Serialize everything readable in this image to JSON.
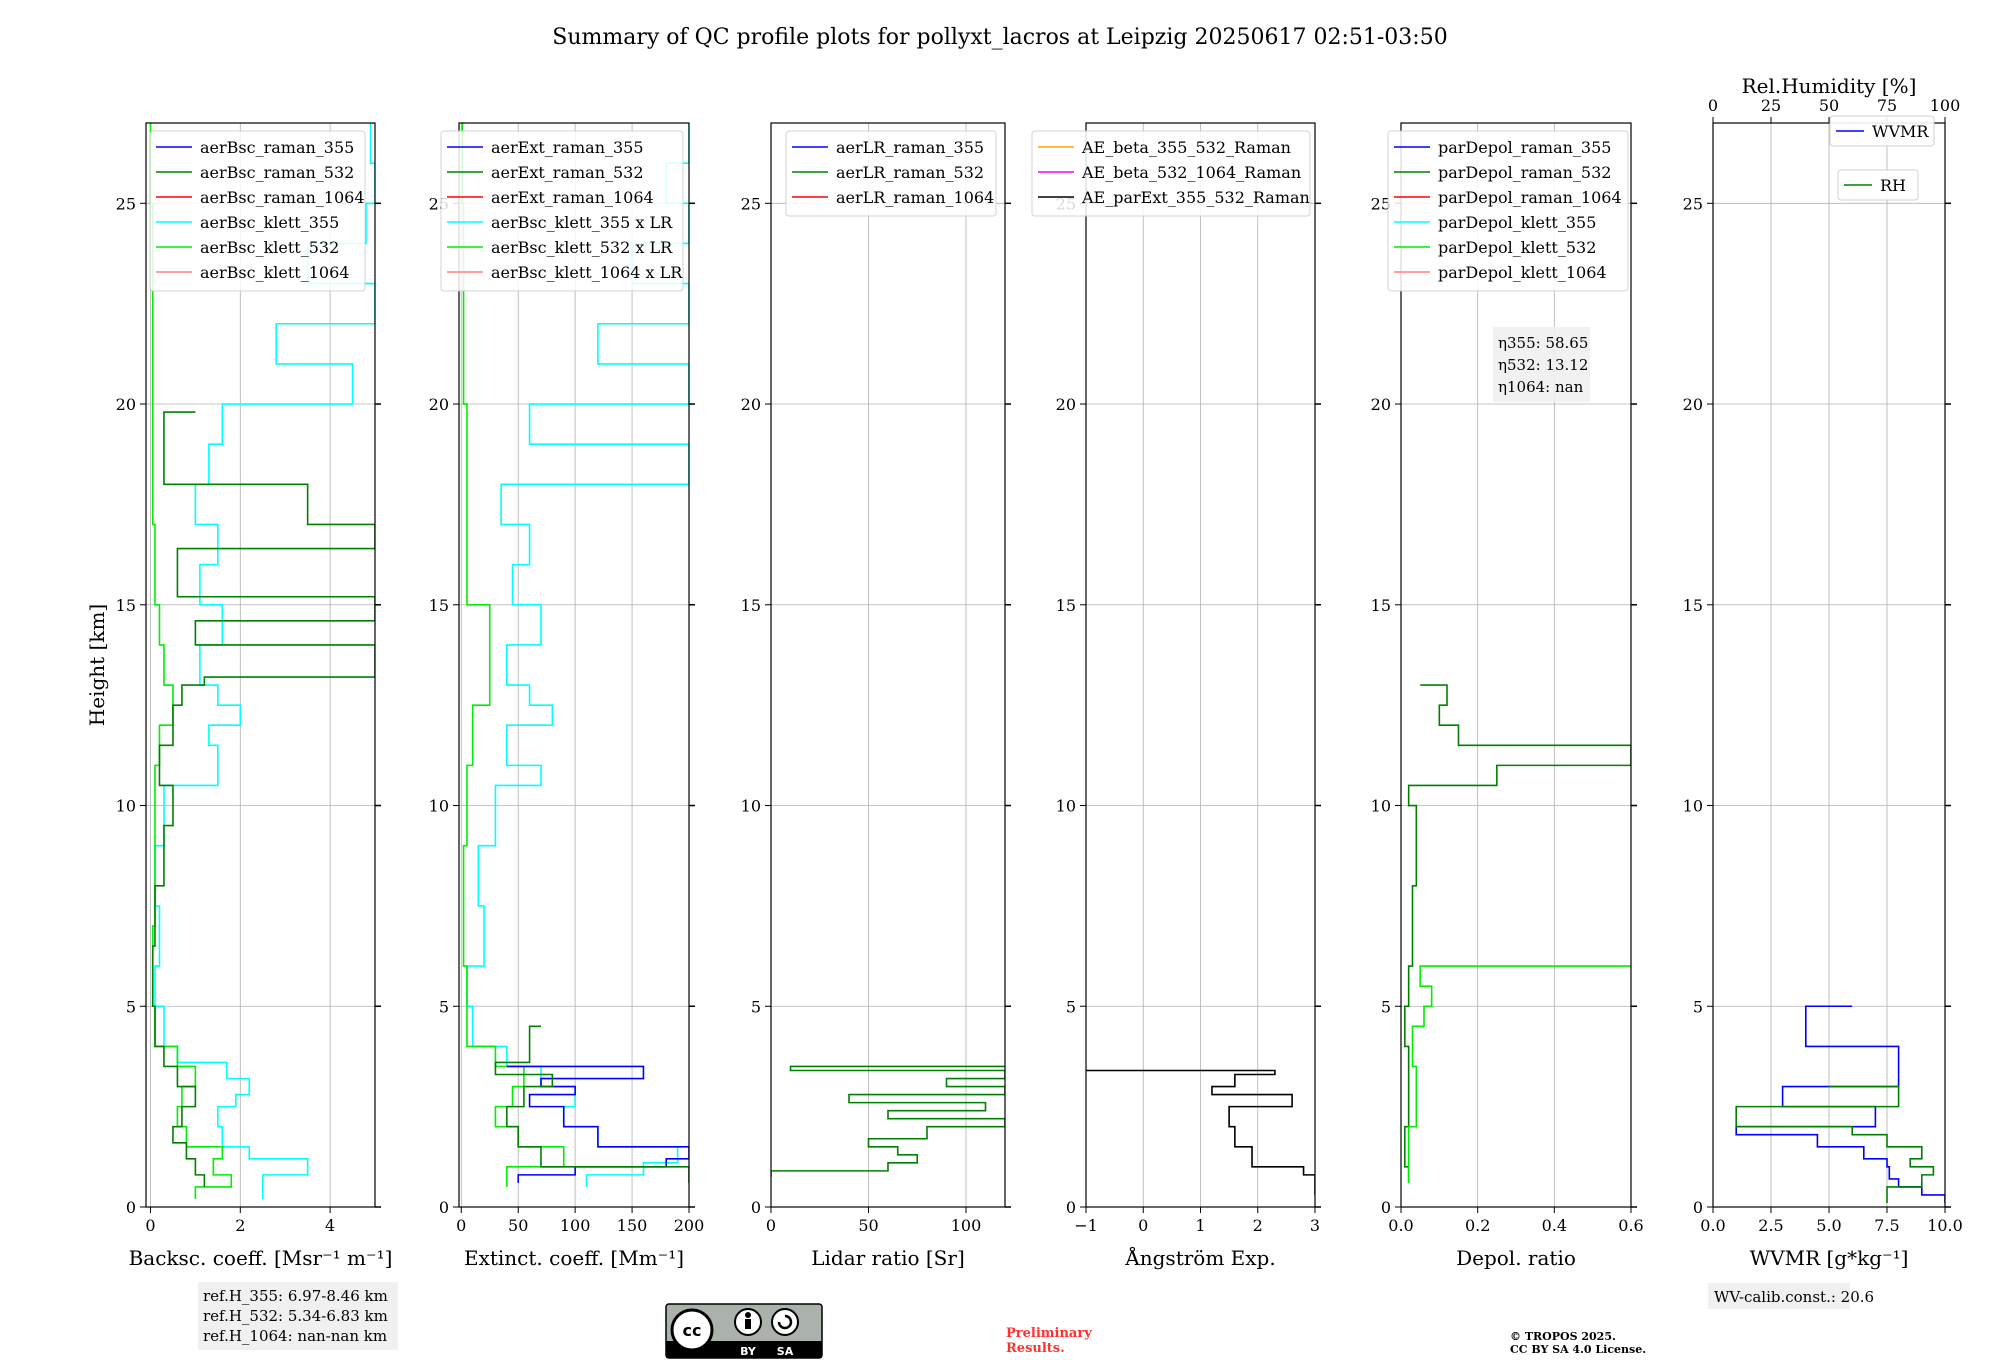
{
  "title": "Summary of QC profile plots for pollyxt_lacros at Leipzig 20250617 02:51-03:50",
  "footer": {
    "refh": [
      "ref.H_355: 6.97-8.46 km",
      "ref.H_532: 5.34-6.83 km",
      "ref.H_1064: nan-nan km"
    ],
    "license_badge": [
      "cc",
      "BY",
      "SA"
    ],
    "preliminary": [
      "Preliminary",
      "Results."
    ],
    "copyright": [
      "© TROPOS 2025.",
      "CC BY SA 4.0 License."
    ],
    "wv_calib": "WV-calib.const.: 20.6"
  },
  "eta_box": [
    "η355: 58.65",
    "η532: 13.12",
    "η1064: nan"
  ],
  "colors": {
    "blue": "#0000ff",
    "green": "#008000",
    "red": "#ff0000",
    "cyan": "#00ffff",
    "lime": "#00ee00",
    "pink": "#ff8080",
    "orange": "#ffa500",
    "magenta": "#ff00ff",
    "black": "#000000",
    "preliminary": "#ff3030"
  },
  "chart_data": [
    {
      "type": "line",
      "id": "bsc",
      "xlabel": "Backsc. coeff. [Msr⁻¹ m⁻¹]",
      "ylabel": "Height [km]",
      "xlim": [
        -0.1,
        5
      ],
      "ylim": [
        0,
        27
      ],
      "xticks": [
        "0",
        "2",
        "4"
      ],
      "xtick_values": [
        0,
        2,
        4
      ],
      "yticks": [
        "0",
        "5",
        "10",
        "15",
        "20",
        "25"
      ],
      "legend": [
        "aerBsc_raman_355",
        "aerBsc_raman_532",
        "aerBsc_raman_1064",
        "aerBsc_klett_355",
        "aerBsc_klett_532",
        "aerBsc_klett_1064"
      ],
      "legend_colors": [
        "blue",
        "green",
        "red",
        "cyan",
        "lime",
        "pink"
      ],
      "series": [
        {
          "name": "aerBsc_klett_355",
          "color": "cyan",
          "h": [
            0.2,
            0.8,
            1.2,
            1.5,
            2.0,
            2.5,
            2.8,
            3.2,
            3.6,
            4.0,
            5.0,
            6.0,
            7.5,
            9.0,
            10.5,
            11.5,
            12.0,
            12.5,
            13.0,
            14.0,
            15.0,
            16.0,
            17.0,
            18.0,
            19.0,
            20.0,
            21.0,
            22.0,
            23.0,
            24.0,
            25.0,
            26.0,
            27.0
          ],
          "v": [
            2.5,
            3.5,
            2.2,
            1.6,
            1.5,
            1.9,
            2.2,
            1.7,
            0.6,
            0.3,
            0.1,
            0.2,
            0.1,
            0.3,
            1.5,
            1.3,
            2.0,
            1.5,
            1.1,
            1.6,
            1.1,
            1.5,
            1.0,
            1.3,
            1.6,
            4.5,
            2.8,
            5.0,
            3.5,
            4.8,
            5.0,
            4.9,
            5.0
          ]
        },
        {
          "name": "aerBsc_klett_532",
          "color": "lime",
          "h": [
            0.2,
            0.5,
            0.8,
            1.2,
            1.5,
            2.0,
            2.5,
            3.0,
            3.5,
            4.0,
            5.0,
            7.0,
            9.0,
            11.0,
            12.0,
            13.0,
            14.0,
            15.0,
            17.0,
            19.0,
            21.0,
            23.0,
            25.0,
            27.0
          ],
          "v": [
            1.0,
            1.8,
            1.4,
            1.6,
            0.8,
            0.6,
            0.7,
            1.0,
            0.6,
            0.1,
            0.05,
            0.1,
            0.1,
            0.2,
            0.5,
            0.3,
            0.2,
            0.1,
            0.05,
            0.05,
            0.05,
            0.05,
            0.0,
            0.05
          ]
        },
        {
          "name": "aerBsc_raman_532",
          "color": "green",
          "h": [
            0.5,
            0.8,
            1.2,
            1.6,
            2.0,
            2.5,
            3.0,
            3.5,
            4.0,
            5.0,
            6.5,
            8.0,
            9.5,
            10.5,
            11.5,
            12.5,
            13.0,
            13.2,
            14.0,
            14.6,
            15.2,
            16.4,
            17.0,
            18.0,
            19.8
          ],
          "v": [
            1.2,
            1.0,
            0.8,
            0.5,
            0.7,
            1.0,
            0.6,
            0.3,
            0.1,
            0.05,
            0.1,
            0.3,
            0.5,
            0.2,
            0.5,
            0.7,
            1.2,
            5.0,
            1.0,
            5.0,
            0.6,
            5.0,
            3.5,
            0.3,
            1.0
          ]
        }
      ]
    },
    {
      "type": "line",
      "id": "ext",
      "xlabel": "Extinct. coeff. [Mm⁻¹]",
      "xlim": [
        -2,
        200
      ],
      "ylim": [
        0,
        27
      ],
      "xticks": [
        "0",
        "50",
        "100",
        "150",
        "200"
      ],
      "xtick_values": [
        0,
        50,
        100,
        150,
        200
      ],
      "yticks": [
        "0",
        "5",
        "10",
        "15",
        "20",
        "25"
      ],
      "legend": [
        "aerExt_raman_355",
        "aerExt_raman_532",
        "aerExt_raman_1064",
        "aerBsc_klett_355 x LR",
        "aerBsc_klett_532 x LR",
        "aerBsc_klett_1064 x LR"
      ],
      "legend_colors": [
        "blue",
        "green",
        "red",
        "cyan",
        "lime",
        "pink"
      ],
      "series": [
        {
          "name": "aerBsc_klett_355 x LR",
          "color": "cyan",
          "h": [
            0.5,
            0.8,
            1.1,
            1.5,
            2.0,
            2.5,
            3.0,
            3.5,
            4.0,
            5.0,
            6.0,
            7.5,
            9.0,
            10.5,
            11.0,
            12.0,
            12.5,
            13.0,
            14.0,
            15.0,
            16.0,
            17.0,
            18.0,
            19.0,
            20.0,
            21.0,
            22.0,
            23.0,
            24.0,
            25.0,
            26.0,
            27.0
          ],
          "v": [
            110,
            160,
            190,
            120,
            90,
            100,
            70,
            40,
            10,
            5,
            20,
            15,
            30,
            70,
            40,
            80,
            60,
            40,
            70,
            45,
            60,
            35,
            200,
            60,
            200,
            120,
            200,
            150,
            200,
            180,
            200,
            200
          ]
        },
        {
          "name": "aerBsc_klett_532 x LR",
          "color": "lime",
          "h": [
            0.5,
            1.0,
            1.5,
            2.0,
            2.5,
            3.0,
            3.5,
            4.0,
            6.0,
            9.0,
            11.0,
            12.5,
            15.0,
            20.0,
            25.0,
            27.0
          ],
          "v": [
            40,
            90,
            50,
            30,
            45,
            55,
            30,
            5,
            2,
            5,
            10,
            25,
            5,
            2,
            1,
            2
          ]
        },
        {
          "name": "aerExt_raman_355",
          "color": "blue",
          "h": [
            0.6,
            0.8,
            1.0,
            1.2,
            1.5,
            2.0,
            2.5,
            2.8,
            3.0,
            3.2,
            3.5
          ],
          "v": [
            50,
            100,
            180,
            200,
            120,
            90,
            60,
            100,
            70,
            160,
            40
          ]
        },
        {
          "name": "aerExt_raman_532",
          "color": "green",
          "h": [
            0.6,
            1.0,
            1.5,
            2.0,
            2.5,
            3.0,
            3.3,
            3.6,
            4.5
          ],
          "v": [
            200,
            70,
            50,
            40,
            55,
            80,
            30,
            60,
            70
          ]
        }
      ]
    },
    {
      "type": "line",
      "id": "lr",
      "xlabel": "Lidar ratio [Sr]",
      "xlim": [
        0,
        120
      ],
      "ylim": [
        0,
        27
      ],
      "xticks": [
        "0",
        "50",
        "100"
      ],
      "xtick_values": [
        0,
        50,
        100
      ],
      "yticks": [
        "0",
        "5",
        "10",
        "15",
        "20",
        "25"
      ],
      "legend": [
        "aerLR_raman_355",
        "aerLR_raman_532",
        "aerLR_raman_1064"
      ],
      "legend_colors": [
        "blue",
        "green",
        "red"
      ],
      "series": [
        {
          "name": "aerLR_raman_532",
          "color": "green",
          "h": [
            0.75,
            0.9,
            1.1,
            1.3,
            1.5,
            1.7,
            2.0,
            2.2,
            2.4,
            2.6,
            2.8,
            3.0,
            3.2,
            3.4,
            3.5
          ],
          "v": [
            0,
            60,
            75,
            65,
            50,
            80,
            120,
            60,
            110,
            40,
            120,
            90,
            120,
            10,
            120
          ]
        }
      ]
    },
    {
      "type": "line",
      "id": "ae",
      "xlabel": "Ångström Exp.",
      "xlim": [
        -1,
        3
      ],
      "ylim": [
        0,
        27
      ],
      "xticks": [
        "−1",
        "0",
        "1",
        "2",
        "3"
      ],
      "xtick_values": [
        -1,
        0,
        1,
        2,
        3
      ],
      "yticks": [
        "0",
        "5",
        "10",
        "15",
        "20",
        "25"
      ],
      "legend": [
        "AE_beta_355_532_Raman",
        "AE_beta_532_1064_Raman",
        "AE_parExt_355_532_Raman"
      ],
      "legend_colors": [
        "orange",
        "magenta",
        "black"
      ],
      "series": [
        {
          "name": "AE_parExt_355_532_Raman",
          "color": "black",
          "h": [
            0.3,
            0.8,
            1.0,
            1.5,
            2.0,
            2.5,
            2.8,
            3.0,
            3.3,
            3.4
          ],
          "v": [
            3.0,
            2.8,
            1.9,
            1.6,
            1.5,
            2.6,
            1.2,
            1.6,
            2.3,
            -1.0
          ]
        }
      ]
    },
    {
      "type": "line",
      "id": "depol",
      "xlabel": "Depol. ratio",
      "xlim": [
        0,
        0.6
      ],
      "ylim": [
        0,
        27
      ],
      "xticks": [
        "0.0",
        "0.2",
        "0.4",
        "0.6"
      ],
      "xtick_values": [
        0,
        0.2,
        0.4,
        0.6
      ],
      "yticks": [
        "0",
        "5",
        "10",
        "15",
        "20",
        "25"
      ],
      "legend": [
        "parDepol_raman_355",
        "parDepol_raman_532",
        "parDepol_raman_1064",
        "parDepol_klett_355",
        "parDepol_klett_532",
        "parDepol_klett_1064"
      ],
      "legend_colors": [
        "blue",
        "green",
        "red",
        "cyan",
        "lime",
        "pink"
      ],
      "series": [
        {
          "name": "parDepol_raman_532",
          "color": "green",
          "h": [
            0.6,
            1.0,
            2.0,
            3.0,
            4.0,
            5.0,
            6.0,
            8.0,
            10.0,
            10.5,
            11.0,
            11.5,
            12.0,
            12.5,
            13.0
          ],
          "v": [
            0.02,
            0.01,
            0.02,
            0.02,
            0.01,
            0.02,
            0.03,
            0.04,
            0.02,
            0.25,
            0.6,
            0.15,
            0.1,
            0.12,
            0.05
          ]
        },
        {
          "name": "parDepol_klett_532",
          "color": "lime",
          "h": [
            0.6,
            2.0,
            3.5,
            4.5,
            5.0,
            5.5,
            6.0
          ],
          "v": [
            0.02,
            0.04,
            0.03,
            0.06,
            0.08,
            0.05,
            0.6
          ]
        }
      ]
    },
    {
      "type": "line",
      "id": "wv",
      "xlabel": "WVMR [g*kg⁻¹]",
      "top_xlabel": "Rel.Humidity [%]",
      "xlim": [
        0,
        10
      ],
      "ylim": [
        0,
        27
      ],
      "xticks": [
        "0.0",
        "2.5",
        "5.0",
        "7.5",
        "10.0"
      ],
      "xtick_values": [
        0,
        2.5,
        5,
        7.5,
        10
      ],
      "top_xticks": [
        "0",
        "25",
        "50",
        "75",
        "100"
      ],
      "yticks": [
        "0",
        "5",
        "10",
        "15",
        "20",
        "25"
      ],
      "legend": [
        "WVMR",
        "RH"
      ],
      "legend_colors": [
        "blue",
        "green"
      ],
      "series": [
        {
          "name": "WVMR",
          "color": "blue",
          "h": [
            0.1,
            0.3,
            0.5,
            0.7,
            1.0,
            1.2,
            1.5,
            1.8,
            2.0,
            2.5,
            3.0,
            4.0,
            5.0
          ],
          "v": [
            10.0,
            9.0,
            8.0,
            7.6,
            7.5,
            6.5,
            4.5,
            1.0,
            7.0,
            3.0,
            8.0,
            4.0,
            6.0
          ]
        },
        {
          "name": "RH",
          "color": "green",
          "h": [
            0.1,
            0.5,
            0.8,
            1.0,
            1.2,
            1.5,
            1.8,
            2.0,
            2.5,
            3.0
          ],
          "v": [
            7.5,
            9.0,
            9.5,
            8.5,
            9.0,
            7.5,
            6.0,
            1.0,
            8.0,
            5.0
          ]
        }
      ]
    }
  ]
}
